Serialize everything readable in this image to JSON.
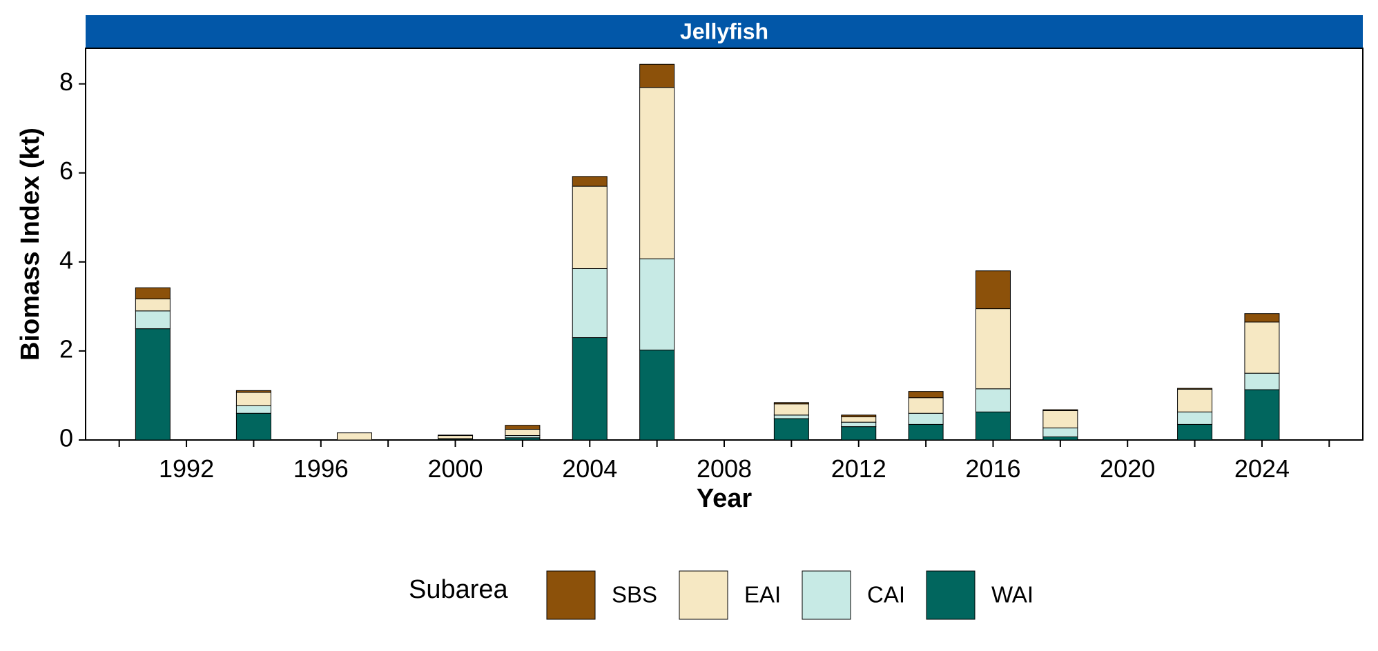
{
  "chart_data": {
    "type": "bar",
    "stacked": true,
    "panel_title": "Jellyfish",
    "xlabel": "Year",
    "ylabel": "Biomass Index (kt)",
    "xlim": [
      1989,
      2027
    ],
    "ylim": [
      0,
      8.8
    ],
    "x_ticks": [
      1992,
      1996,
      2000,
      2004,
      2008,
      2012,
      2016,
      2020,
      2024
    ],
    "x_tick_labels": [
      "1992",
      "1996",
      "2000",
      "2004",
      "2008",
      "2012",
      "2016",
      "2020",
      "2024"
    ],
    "y_ticks": [
      0,
      2,
      4,
      6,
      8
    ],
    "y_tick_labels": [
      "0",
      "2",
      "4",
      "6",
      "8"
    ],
    "grid": false,
    "legend_position": "bottom",
    "legend_title": "Subarea",
    "categories": [
      1991,
      1994,
      1997,
      2000,
      2002,
      2004,
      2006,
      2010,
      2012,
      2014,
      2016,
      2018,
      2022,
      2024
    ],
    "series": [
      {
        "name": "WAI",
        "color": "#01665e",
        "values": [
          2.5,
          0.6,
          0.0,
          0.02,
          0.05,
          2.3,
          2.02,
          0.48,
          0.3,
          0.35,
          0.63,
          0.07,
          0.35,
          1.13
        ]
      },
      {
        "name": "CAI",
        "color": "#c7eae5",
        "values": [
          0.4,
          0.17,
          0.0,
          0.01,
          0.05,
          1.55,
          2.05,
          0.08,
          0.1,
          0.25,
          0.52,
          0.2,
          0.28,
          0.37
        ]
      },
      {
        "name": "EAI",
        "color": "#f6e8c3",
        "values": [
          0.27,
          0.3,
          0.16,
          0.07,
          0.14,
          1.85,
          3.85,
          0.25,
          0.12,
          0.35,
          1.8,
          0.39,
          0.51,
          1.15
        ]
      },
      {
        "name": "SBS",
        "color": "#8c510a",
        "values": [
          0.25,
          0.04,
          0.0,
          0.01,
          0.09,
          0.22,
          0.52,
          0.03,
          0.04,
          0.14,
          0.85,
          0.02,
          0.02,
          0.19
        ]
      }
    ],
    "legend_order": [
      "SBS",
      "EAI",
      "CAI",
      "WAI"
    ],
    "colors": {
      "strip_background": "#0257a8",
      "strip_text": "#ffffff",
      "bar_outline": "#000000",
      "axis": "#000000"
    }
  }
}
